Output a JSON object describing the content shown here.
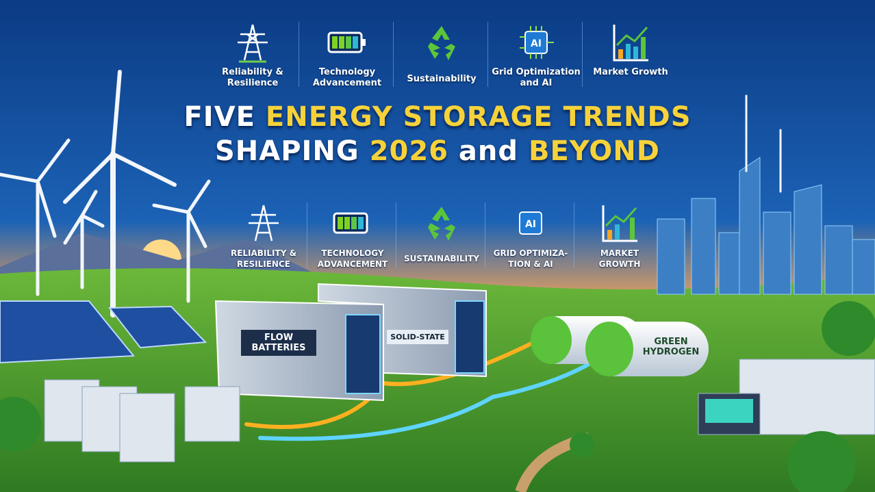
{
  "header": {
    "trends_top": [
      {
        "icon": "transmission-tower-icon",
        "label": "Reliability & Resilience"
      },
      {
        "icon": "battery-icon",
        "label": "Technology Advancement"
      },
      {
        "icon": "recycle-icon",
        "label": "Sustainability"
      },
      {
        "icon": "ai-chip-icon",
        "label": "Grid Optimization and AI"
      },
      {
        "icon": "growth-chart-icon",
        "label": "Market Growth"
      }
    ],
    "title_line1_a": "FIVE ",
    "title_line1_b": "ENERGY STORAGE TRENDS",
    "title_line2_a": "SHAPING ",
    "title_line2_b": "2026",
    "title_line2_c": " and ",
    "title_line2_d": "BEYOND"
  },
  "trends_bottom": [
    {
      "icon": "transmission-tower-icon",
      "label": "RELIABILITY & RESILIENCE"
    },
    {
      "icon": "battery-icon",
      "label": "TECHNOLOGY ADVANCEMENT"
    },
    {
      "icon": "recycle-icon",
      "label": "SUSTAINABILITY"
    },
    {
      "icon": "ai-chip-icon",
      "label": "GRID OPTIMIZA-TION & AI"
    },
    {
      "icon": "growth-chart-icon",
      "label": "MARKET GROWTH"
    }
  ],
  "storage": {
    "flow": "FLOW BATTERIES",
    "solid": "SOLID-STATE",
    "hydrogen": "GREEN HYDROGEN"
  },
  "colors": {
    "sky_top": "#0d3f86",
    "accent_yellow": "#f6d23a",
    "grass": "#4c9a2e",
    "glow_orange": "#ffb020",
    "glow_blue": "#5fd4ff"
  }
}
